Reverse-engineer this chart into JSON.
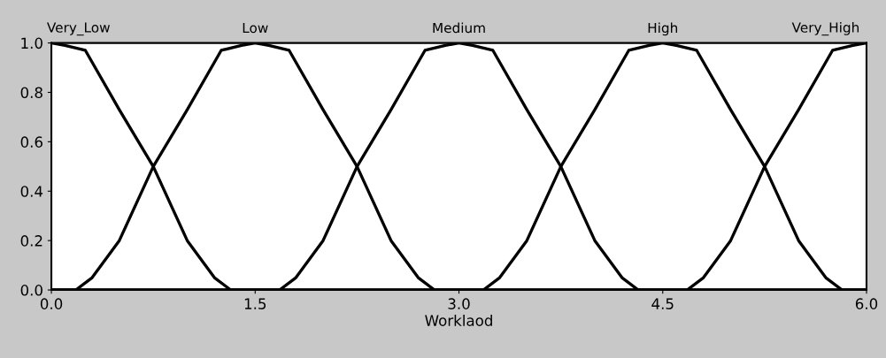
{
  "chart_data": {
    "type": "line",
    "xlabel": "Worklaod",
    "xlim": [
      0,
      6
    ],
    "ylim": [
      0,
      1
    ],
    "xticks": [
      {
        "value": 0,
        "label": "0.0"
      },
      1.5,
      {
        "value": 3,
        "label": "3.0"
      },
      4.5,
      {
        "value": 6,
        "label": "6.0"
      }
    ],
    "yticks": [
      {
        "value": 0,
        "label": "0.0"
      },
      0.2,
      0.4,
      0.6,
      0.8,
      {
        "value": 1,
        "label": "1.0"
      }
    ],
    "grid": false,
    "legend": false,
    "marker": "none",
    "line_style": "solid",
    "series": [
      {
        "name": "Very_Low",
        "color": "#000000",
        "x": [
          0,
          0.1,
          0.25,
          0.5,
          0.75,
          1.0,
          1.2,
          1.32,
          6
        ],
        "values": [
          1,
          0.99,
          0.97,
          0.73,
          0.5,
          0.2,
          0.05,
          0,
          0
        ]
      },
      {
        "name": "Low",
        "color": "#000000",
        "x": [
          0,
          0.18,
          0.3,
          0.5,
          0.75,
          1.0,
          1.25,
          1.4,
          1.5,
          1.6,
          1.75,
          2.0,
          2.25,
          2.5,
          2.7,
          2.82,
          6
        ],
        "values": [
          0,
          0,
          0.05,
          0.2,
          0.5,
          0.73,
          0.97,
          0.99,
          1,
          0.99,
          0.97,
          0.73,
          0.5,
          0.2,
          0.05,
          0,
          0
        ]
      },
      {
        "name": "Medium",
        "color": "#000000",
        "x": [
          0,
          1.68,
          1.8,
          2.0,
          2.25,
          2.5,
          2.75,
          2.9,
          3.0,
          3.1,
          3.25,
          3.5,
          3.75,
          4.0,
          4.2,
          4.32,
          6
        ],
        "values": [
          0,
          0,
          0.05,
          0.2,
          0.5,
          0.73,
          0.97,
          0.99,
          1,
          0.99,
          0.97,
          0.73,
          0.5,
          0.2,
          0.05,
          0,
          0
        ]
      },
      {
        "name": "High",
        "color": "#000000",
        "x": [
          0,
          3.18,
          3.3,
          3.5,
          3.75,
          4.0,
          4.25,
          4.4,
          4.5,
          4.6,
          4.75,
          5.0,
          5.25,
          5.5,
          5.7,
          5.82,
          6
        ],
        "values": [
          0,
          0,
          0.05,
          0.2,
          0.5,
          0.73,
          0.97,
          0.99,
          1,
          0.99,
          0.97,
          0.73,
          0.5,
          0.2,
          0.05,
          0,
          0
        ]
      },
      {
        "name": "Very_High",
        "color": "#000000",
        "x": [
          0,
          4.68,
          4.8,
          5.0,
          5.25,
          5.5,
          5.75,
          5.9,
          6
        ],
        "values": [
          0,
          0,
          0.05,
          0.2,
          0.5,
          0.73,
          0.97,
          0.99,
          1
        ]
      }
    ]
  }
}
